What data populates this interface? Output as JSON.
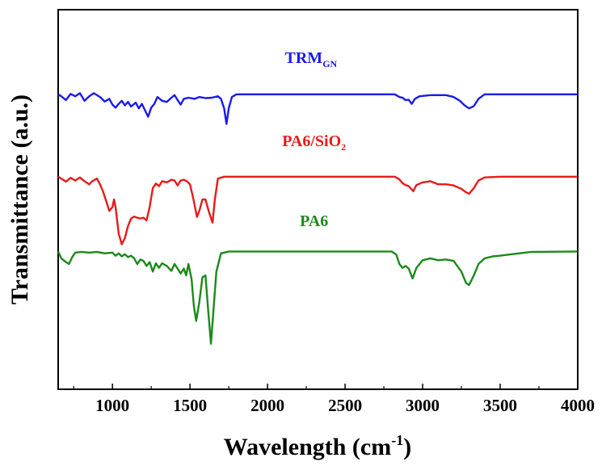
{
  "chart_data": {
    "type": "line",
    "xlabel": "Wavelength (cm",
    "xlabel_sup": "-1",
    "xlabel_end": ")",
    "ylabel": "Transmittance (a.u.)",
    "xlim": [
      650,
      4000
    ],
    "x_ticks": [
      1000,
      1500,
      2000,
      2500,
      3000,
      3500,
      4000
    ],
    "x_tick_labels": [
      "1000",
      "1500",
      "2000",
      "2500",
      "3000",
      "3500",
      "4000"
    ],
    "y_ticks_shown": false,
    "ylim": [
      0,
      1
    ],
    "legend": "inline labels above each curve",
    "series": [
      {
        "name": "TRM",
        "name_sub": "GN",
        "color": "#1a1aee",
        "points": [
          [
            650,
            0.777
          ],
          [
            670,
            0.772
          ],
          [
            700,
            0.762
          ],
          [
            730,
            0.778
          ],
          [
            760,
            0.772
          ],
          [
            790,
            0.78
          ],
          [
            820,
            0.76
          ],
          [
            850,
            0.772
          ],
          [
            880,
            0.78
          ],
          [
            920,
            0.77
          ],
          [
            950,
            0.758
          ],
          [
            980,
            0.765
          ],
          [
            1000,
            0.75
          ],
          [
            1020,
            0.742
          ],
          [
            1040,
            0.752
          ],
          [
            1060,
            0.76
          ],
          [
            1080,
            0.748
          ],
          [
            1100,
            0.757
          ],
          [
            1120,
            0.745
          ],
          [
            1150,
            0.755
          ],
          [
            1170,
            0.74
          ],
          [
            1190,
            0.752
          ],
          [
            1210,
            0.735
          ],
          [
            1230,
            0.718
          ],
          [
            1250,
            0.742
          ],
          [
            1270,
            0.752
          ],
          [
            1290,
            0.77
          ],
          [
            1320,
            0.76
          ],
          [
            1350,
            0.757
          ],
          [
            1380,
            0.768
          ],
          [
            1400,
            0.775
          ],
          [
            1420,
            0.762
          ],
          [
            1440,
            0.75
          ],
          [
            1460,
            0.765
          ],
          [
            1490,
            0.768
          ],
          [
            1530,
            0.765
          ],
          [
            1560,
            0.77
          ],
          [
            1600,
            0.767
          ],
          [
            1640,
            0.768
          ],
          [
            1680,
            0.772
          ],
          [
            1700,
            0.765
          ],
          [
            1720,
            0.74
          ],
          [
            1735,
            0.699
          ],
          [
            1750,
            0.74
          ],
          [
            1770,
            0.77
          ],
          [
            1800,
            0.777
          ],
          [
            2000,
            0.777
          ],
          [
            2500,
            0.777
          ],
          [
            2820,
            0.777
          ],
          [
            2850,
            0.77
          ],
          [
            2870,
            0.768
          ],
          [
            2890,
            0.762
          ],
          [
            2910,
            0.763
          ],
          [
            2930,
            0.752
          ],
          [
            2950,
            0.765
          ],
          [
            2980,
            0.772
          ],
          [
            3050,
            0.775
          ],
          [
            3150,
            0.775
          ],
          [
            3200,
            0.77
          ],
          [
            3240,
            0.76
          ],
          [
            3270,
            0.748
          ],
          [
            3300,
            0.74
          ],
          [
            3330,
            0.746
          ],
          [
            3360,
            0.765
          ],
          [
            3400,
            0.777
          ],
          [
            3500,
            0.777
          ],
          [
            4000,
            0.777
          ]
        ]
      },
      {
        "name": "PA6/SiO",
        "name_sub": "2",
        "color": "#e81a1a",
        "points": [
          [
            650,
            0.56
          ],
          [
            670,
            0.555
          ],
          [
            700,
            0.547
          ],
          [
            730,
            0.557
          ],
          [
            760,
            0.55
          ],
          [
            790,
            0.558
          ],
          [
            820,
            0.548
          ],
          [
            850,
            0.54
          ],
          [
            870,
            0.548
          ],
          [
            900,
            0.555
          ],
          [
            920,
            0.54
          ],
          [
            940,
            0.52
          ],
          [
            960,
            0.495
          ],
          [
            980,
            0.47
          ],
          [
            1000,
            0.48
          ],
          [
            1010,
            0.5
          ],
          [
            1020,
            0.48
          ],
          [
            1040,
            0.41
          ],
          [
            1060,
            0.382
          ],
          [
            1080,
            0.398
          ],
          [
            1100,
            0.43
          ],
          [
            1120,
            0.45
          ],
          [
            1140,
            0.455
          ],
          [
            1160,
            0.452
          ],
          [
            1180,
            0.45
          ],
          [
            1200,
            0.452
          ],
          [
            1220,
            0.445
          ],
          [
            1240,
            0.48
          ],
          [
            1260,
            0.53
          ],
          [
            1280,
            0.542
          ],
          [
            1300,
            0.535
          ],
          [
            1320,
            0.548
          ],
          [
            1350,
            0.545
          ],
          [
            1380,
            0.552
          ],
          [
            1400,
            0.55
          ],
          [
            1420,
            0.537
          ],
          [
            1440,
            0.55
          ],
          [
            1460,
            0.552
          ],
          [
            1480,
            0.548
          ],
          [
            1500,
            0.54
          ],
          [
            1520,
            0.505
          ],
          [
            1545,
            0.454
          ],
          [
            1560,
            0.47
          ],
          [
            1580,
            0.5
          ],
          [
            1600,
            0.5
          ],
          [
            1620,
            0.47
          ],
          [
            1645,
            0.439
          ],
          [
            1660,
            0.5
          ],
          [
            1680,
            0.555
          ],
          [
            1720,
            0.56
          ],
          [
            2000,
            0.56
          ],
          [
            2500,
            0.56
          ],
          [
            2820,
            0.56
          ],
          [
            2850,
            0.553
          ],
          [
            2870,
            0.543
          ],
          [
            2890,
            0.538
          ],
          [
            2910,
            0.535
          ],
          [
            2940,
            0.522
          ],
          [
            2960,
            0.538
          ],
          [
            3000,
            0.545
          ],
          [
            3050,
            0.548
          ],
          [
            3100,
            0.54
          ],
          [
            3150,
            0.54
          ],
          [
            3200,
            0.537
          ],
          [
            3250,
            0.528
          ],
          [
            3280,
            0.519
          ],
          [
            3300,
            0.515
          ],
          [
            3330,
            0.53
          ],
          [
            3360,
            0.55
          ],
          [
            3400,
            0.558
          ],
          [
            3500,
            0.56
          ],
          [
            4000,
            0.56
          ]
        ]
      },
      {
        "name": "PA6",
        "name_sub": "",
        "color": "#1a8a1a",
        "points": [
          [
            650,
            0.363
          ],
          [
            670,
            0.345
          ],
          [
            700,
            0.335
          ],
          [
            720,
            0.33
          ],
          [
            740,
            0.348
          ],
          [
            760,
            0.36
          ],
          [
            800,
            0.362
          ],
          [
            850,
            0.36
          ],
          [
            900,
            0.362
          ],
          [
            950,
            0.358
          ],
          [
            1000,
            0.36
          ],
          [
            1020,
            0.352
          ],
          [
            1040,
            0.358
          ],
          [
            1060,
            0.35
          ],
          [
            1080,
            0.356
          ],
          [
            1100,
            0.348
          ],
          [
            1120,
            0.352
          ],
          [
            1140,
            0.345
          ],
          [
            1160,
            0.33
          ],
          [
            1180,
            0.342
          ],
          [
            1200,
            0.338
          ],
          [
            1220,
            0.325
          ],
          [
            1240,
            0.335
          ],
          [
            1260,
            0.31
          ],
          [
            1280,
            0.332
          ],
          [
            1300,
            0.32
          ],
          [
            1320,
            0.332
          ],
          [
            1350,
            0.325
          ],
          [
            1380,
            0.312
          ],
          [
            1400,
            0.33
          ],
          [
            1420,
            0.318
          ],
          [
            1440,
            0.305
          ],
          [
            1460,
            0.318
          ],
          [
            1475,
            0.3
          ],
          [
            1490,
            0.33
          ],
          [
            1510,
            0.29
          ],
          [
            1525,
            0.22
          ],
          [
            1540,
            0.18
          ],
          [
            1560,
            0.23
          ],
          [
            1580,
            0.295
          ],
          [
            1600,
            0.3
          ],
          [
            1615,
            0.22
          ],
          [
            1635,
            0.12
          ],
          [
            1650,
            0.2
          ],
          [
            1670,
            0.31
          ],
          [
            1700,
            0.358
          ],
          [
            1750,
            0.363
          ],
          [
            2000,
            0.363
          ],
          [
            2500,
            0.363
          ],
          [
            2800,
            0.363
          ],
          [
            2830,
            0.355
          ],
          [
            2850,
            0.33
          ],
          [
            2870,
            0.32
          ],
          [
            2890,
            0.325
          ],
          [
            2910,
            0.318
          ],
          [
            2935,
            0.292
          ],
          [
            2960,
            0.32
          ],
          [
            3000,
            0.34
          ],
          [
            3050,
            0.345
          ],
          [
            3100,
            0.34
          ],
          [
            3150,
            0.342
          ],
          [
            3200,
            0.338
          ],
          [
            3250,
            0.31
          ],
          [
            3280,
            0.28
          ],
          [
            3300,
            0.275
          ],
          [
            3330,
            0.3
          ],
          [
            3360,
            0.33
          ],
          [
            3400,
            0.345
          ],
          [
            3450,
            0.35
          ],
          [
            3500,
            0.352
          ],
          [
            3600,
            0.357
          ],
          [
            3700,
            0.362
          ],
          [
            4000,
            0.363
          ]
        ]
      }
    ],
    "label_positions_data": [
      {
        "series": 0,
        "x": 2280,
        "y": 0.86
      },
      {
        "series": 1,
        "x": 2300,
        "y": 0.64
      },
      {
        "series": 2,
        "x": 2300,
        "y": 0.43
      }
    ]
  }
}
